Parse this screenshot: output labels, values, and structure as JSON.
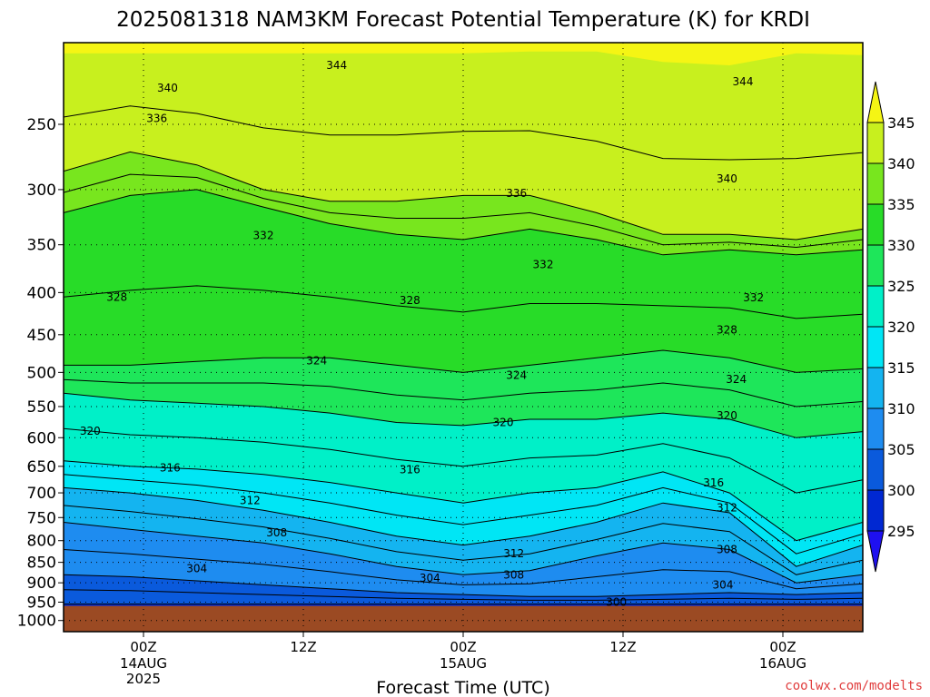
{
  "title": "2025081318 NAM3KM Forecast Potential Temperature (K) for KRDI",
  "xlabel": "Forecast Time (UTC)",
  "credit": "coolwx.com/modelts",
  "chart_data": {
    "type": "heatmap",
    "title": "2025081318 NAM3KM Forecast Potential Temperature (K) for KRDI",
    "xlabel": "Forecast Time (UTC)",
    "ylabel": "",
    "y_scale": "log",
    "ylim": [
      1000,
      200
    ],
    "x_ticks": [
      {
        "hour": 6,
        "label": "00Z",
        "sub": [
          "14AUG",
          "2025"
        ]
      },
      {
        "hour": 18,
        "label": "12Z",
        "sub": []
      },
      {
        "hour": 30,
        "label": "00Z",
        "sub": [
          "15AUG"
        ]
      },
      {
        "hour": 42,
        "label": "12Z",
        "sub": []
      },
      {
        "hour": 54,
        "label": "00Z",
        "sub": [
          "16AUG"
        ]
      }
    ],
    "xlim": [
      0,
      60
    ],
    "y_ticks": [
      250,
      300,
      350,
      400,
      450,
      500,
      550,
      600,
      650,
      700,
      750,
      800,
      850,
      900,
      950,
      1000
    ],
    "colorbar": {
      "levels": [
        295,
        300,
        305,
        310,
        315,
        320,
        325,
        330,
        335,
        340,
        345
      ],
      "colors": [
        "#1e10f0",
        "#0028d2",
        "#0a5adc",
        "#1e8cf0",
        "#14b4f0",
        "#00e6f5",
        "#00f0c8",
        "#1ee65a",
        "#28dc28",
        "#78e61e",
        "#c8f01e",
        "#f5f514"
      ]
    },
    "contour_labels": [
      {
        "value": "344",
        "x": 20.5,
        "p": 212
      },
      {
        "value": "344",
        "x": 51.0,
        "p": 222
      },
      {
        "value": "340",
        "x": 7.8,
        "p": 226
      },
      {
        "value": "340",
        "x": 49.8,
        "p": 291
      },
      {
        "value": "336",
        "x": 7.0,
        "p": 246
      },
      {
        "value": "336",
        "x": 34.0,
        "p": 303
      },
      {
        "value": "332",
        "x": 15.0,
        "p": 341
      },
      {
        "value": "332",
        "x": 36.0,
        "p": 370
      },
      {
        "value": "332",
        "x": 51.8,
        "p": 406
      },
      {
        "value": "328",
        "x": 4.0,
        "p": 405
      },
      {
        "value": "328",
        "x": 26.0,
        "p": 409
      },
      {
        "value": "328",
        "x": 49.8,
        "p": 444
      },
      {
        "value": "324",
        "x": 19.0,
        "p": 484
      },
      {
        "value": "324",
        "x": 34.0,
        "p": 504
      },
      {
        "value": "324",
        "x": 50.5,
        "p": 510
      },
      {
        "value": "320",
        "x": 2.0,
        "p": 589
      },
      {
        "value": "320",
        "x": 33.0,
        "p": 575
      },
      {
        "value": "320",
        "x": 49.8,
        "p": 564
      },
      {
        "value": "316",
        "x": 8.0,
        "p": 653
      },
      {
        "value": "316",
        "x": 26.0,
        "p": 656
      },
      {
        "value": "316",
        "x": 48.8,
        "p": 681
      },
      {
        "value": "312",
        "x": 14.0,
        "p": 715
      },
      {
        "value": "312",
        "x": 49.8,
        "p": 730
      },
      {
        "value": "312",
        "x": 33.8,
        "p": 830
      },
      {
        "value": "308",
        "x": 16.0,
        "p": 783
      },
      {
        "value": "308",
        "x": 33.8,
        "p": 880
      },
      {
        "value": "308",
        "x": 49.8,
        "p": 820
      },
      {
        "value": "304",
        "x": 10.0,
        "p": 865
      },
      {
        "value": "304",
        "x": 27.5,
        "p": 888
      },
      {
        "value": "304",
        "x": 49.5,
        "p": 905
      },
      {
        "value": "300",
        "x": 41.5,
        "p": 950
      }
    ]
  }
}
